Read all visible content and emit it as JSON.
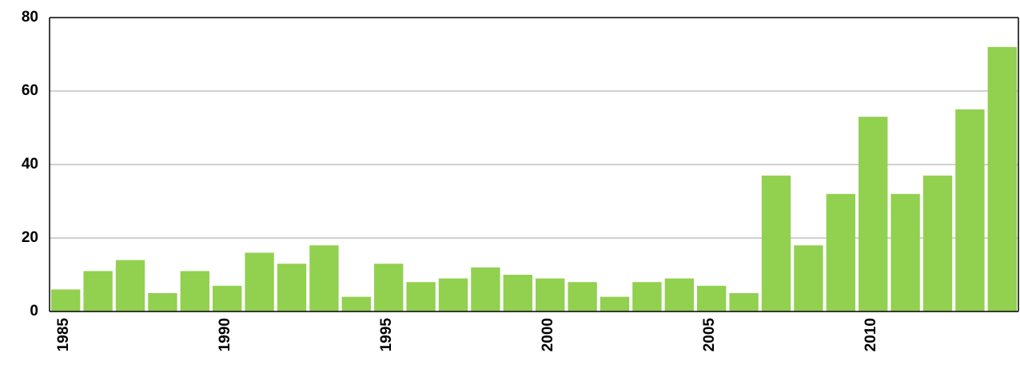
{
  "chart_data": {
    "type": "bar",
    "categories": [
      "1985",
      null,
      null,
      null,
      null,
      "1990",
      null,
      null,
      null,
      null,
      "1995",
      null,
      null,
      null,
      null,
      "2000",
      null,
      null,
      null,
      null,
      "2005",
      null,
      null,
      null,
      null,
      "2010",
      null,
      null,
      null,
      null
    ],
    "values": [
      6,
      11,
      14,
      5,
      11,
      7,
      16,
      13,
      18,
      4,
      13,
      8,
      9,
      12,
      10,
      9,
      8,
      4,
      8,
      9,
      7,
      5,
      37,
      18,
      32,
      53,
      32,
      37,
      55,
      72
    ],
    "color": "#92d050",
    "ylim": [
      0,
      80
    ],
    "yticks": [
      0,
      20,
      40,
      60,
      80
    ],
    "grid": true
  }
}
